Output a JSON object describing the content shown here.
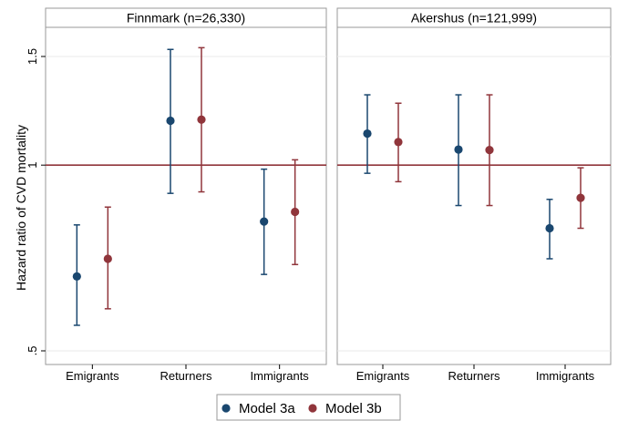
{
  "chart_data": {
    "type": "scatter",
    "subtype": "point estimates with 95% confidence intervals, faceted",
    "ylabel": "Hazard ratio of CVD mortality",
    "y_scale": "log",
    "ylim": [
      0.5,
      1.6
    ],
    "y_ticks": [
      {
        "value": 0.5,
        "label": ".5"
      },
      {
        "value": 1,
        "label": "1"
      },
      {
        "value": 1.5,
        "label": "1.5"
      }
    ],
    "reference_line": 1,
    "colors": {
      "model_3a": "#1a476f",
      "model_3b": "#90353b",
      "reference_line": "#90353b",
      "grid": "#eaeaea",
      "strip_bg": "#ffffff",
      "frame": "#9a9a9a"
    },
    "grid": true,
    "legend_position": "bottom",
    "categories": [
      "Emigrants",
      "Returners",
      "Immigrants"
    ],
    "series_names": [
      "Model 3a",
      "Model 3b"
    ],
    "panels": [
      {
        "title": "Finnmark (n=26,330)",
        "series": [
          {
            "name": "Model 3a",
            "points": [
              {
                "category": "Emigrants",
                "estimate": 0.66,
                "lower": 0.55,
                "upper": 0.8
              },
              {
                "category": "Returners",
                "estimate": 1.18,
                "lower": 0.9,
                "upper": 1.54
              },
              {
                "category": "Immigrants",
                "estimate": 0.81,
                "lower": 0.665,
                "upper": 0.985
              }
            ]
          },
          {
            "name": "Model 3b",
            "points": [
              {
                "category": "Emigrants",
                "estimate": 0.705,
                "lower": 0.585,
                "upper": 0.855
              },
              {
                "category": "Returners",
                "estimate": 1.185,
                "lower": 0.905,
                "upper": 1.55
              },
              {
                "category": "Immigrants",
                "estimate": 0.84,
                "lower": 0.69,
                "upper": 1.02
              }
            ]
          }
        ]
      },
      {
        "title": "Akershus (n=121,999)",
        "series": [
          {
            "name": "Model 3a",
            "points": [
              {
                "category": "Emigrants",
                "estimate": 1.125,
                "lower": 0.97,
                "upper": 1.3
              },
              {
                "category": "Returners",
                "estimate": 1.06,
                "lower": 0.86,
                "upper": 1.3
              },
              {
                "category": "Immigrants",
                "estimate": 0.79,
                "lower": 0.705,
                "upper": 0.88
              }
            ]
          },
          {
            "name": "Model 3b",
            "points": [
              {
                "category": "Emigrants",
                "estimate": 1.09,
                "lower": 0.94,
                "upper": 1.26
              },
              {
                "category": "Returners",
                "estimate": 1.058,
                "lower": 0.86,
                "upper": 1.3
              },
              {
                "category": "Immigrants",
                "estimate": 0.885,
                "lower": 0.79,
                "upper": 0.99
              }
            ]
          }
        ]
      }
    ]
  }
}
